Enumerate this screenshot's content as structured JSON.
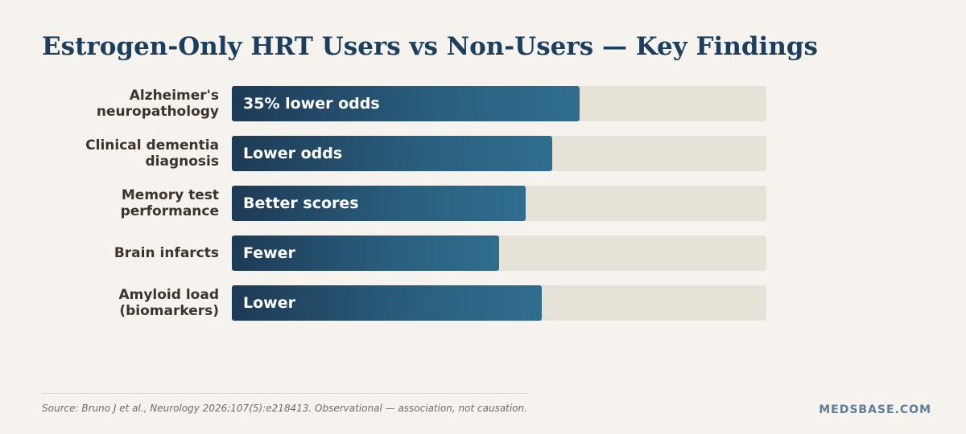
{
  "chart_data": {
    "type": "bar",
    "orientation": "horizontal",
    "title": "Estrogen-Only HRT Users vs Non-Users — Key Findings",
    "categories": [
      "Alzheimer's\nneuropathology",
      "Clinical dementia\ndiagnosis",
      "Memory test\nperformance",
      "Brain infarcts",
      "Amyloid load\n(biomarkers)"
    ],
    "values": [
      65,
      60,
      55,
      50,
      58
    ],
    "value_labels": [
      "35% lower odds",
      "Lower odds",
      "Better scores",
      "Fewer",
      "Lower"
    ],
    "xlim": [
      0,
      100
    ],
    "grid": false,
    "legend": "none"
  },
  "footer": {
    "source": "Source: Bruno J et al., Neurology 2026;107(5):e218413. Observational — association, not causation.",
    "brand": "MEDSBASE.COM"
  },
  "colors": {
    "title": "#1c3f5e",
    "bar_start": "#1d3a55",
    "bar_end": "#2f6d8f",
    "track": "#e7e2d8",
    "background": "#f6f3ee"
  }
}
